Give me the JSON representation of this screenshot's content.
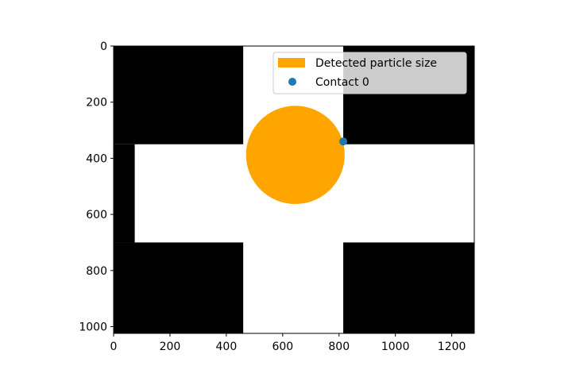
{
  "chart_data": {
    "type": "scatter",
    "title": "",
    "xlabel": "",
    "ylabel": "",
    "xlim": [
      0,
      1280
    ],
    "ylim": [
      1024,
      0
    ],
    "y_inverted": true,
    "x_ticks": [
      0,
      200,
      400,
      600,
      800,
      1000,
      1200
    ],
    "y_ticks": [
      0,
      200,
      400,
      600,
      800,
      1000
    ],
    "background_image": {
      "description_values": "binary mask, black regions and white cross-shaped region",
      "black_rects": [
        {
          "x0": 0,
          "x1": 460,
          "y0": 0,
          "y1": 350
        },
        {
          "x0": 815,
          "x1": 1280,
          "y0": 0,
          "y1": 350
        },
        {
          "x0": 0,
          "x1": 75,
          "y0": 350,
          "y1": 700
        },
        {
          "x0": 0,
          "x1": 460,
          "y0": 700,
          "y1": 1024
        },
        {
          "x0": 815,
          "x1": 1280,
          "y0": 700,
          "y1": 1024
        }
      ],
      "black_color": "#000000",
      "white_color": "#ffffff"
    },
    "circles": [
      {
        "name": "Detected particle size",
        "cx": 645,
        "cy": 388,
        "r": 175,
        "color": "#ffa500"
      }
    ],
    "points": [
      {
        "name": "Contact 0",
        "x": 815,
        "y": 340,
        "color": "#1f77b4"
      }
    ],
    "legend": {
      "placement": "upper-right",
      "entries": [
        {
          "label": "Detected particle size",
          "kind": "patch",
          "color": "#ffa500"
        },
        {
          "label": "Contact 0",
          "kind": "marker",
          "color": "#1f77b4"
        }
      ]
    }
  }
}
